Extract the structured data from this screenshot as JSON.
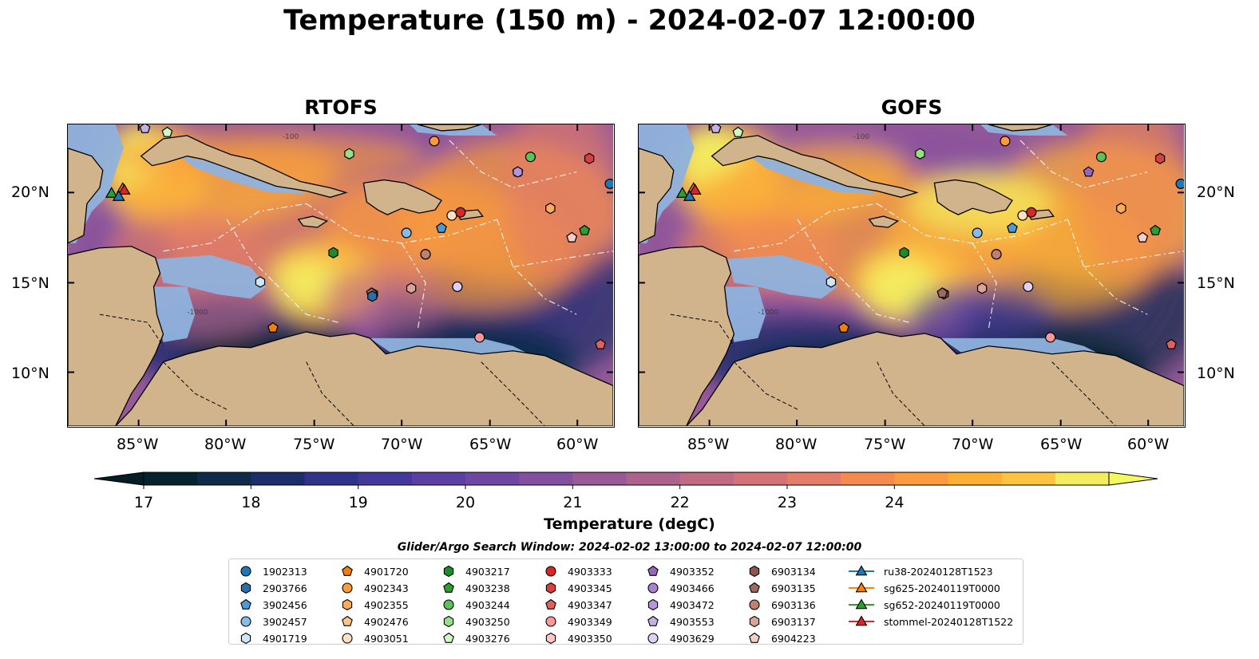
{
  "title": "Temperature (150 m) - 2024-02-07 12:00:00",
  "panels": [
    {
      "title": "RTOFS"
    },
    {
      "title": "GOFS"
    }
  ],
  "axes": {
    "lon_ticks": [
      "85°W",
      "80°W",
      "75°W",
      "70°W",
      "65°W",
      "60°W"
    ],
    "lat_ticks": [
      "20°N",
      "15°N",
      "10°N"
    ]
  },
  "contour_labels": [
    "-100",
    "-1000"
  ],
  "colorbar": {
    "label": "Temperature (degC)",
    "ticks": [
      "17",
      "18",
      "19",
      "20",
      "21",
      "22",
      "23",
      "24"
    ],
    "colors": [
      "#04232f",
      "#0d2a4a",
      "#1b2e6a",
      "#2f3289",
      "#45389b",
      "#5b3fa3",
      "#6f47a3",
      "#83509f",
      "#985a97",
      "#ab628d",
      "#be6b83",
      "#d27378",
      "#e37c68",
      "#f28a52",
      "#f99b3e",
      "#fcae35",
      "#fdc341",
      "#f3ec61"
    ],
    "under_color": "#041d26",
    "over_color": "#f5f85f"
  },
  "search_window": "Glider/Argo Search Window: 2024-02-02 13:00:00 to 2024-02-07 12:00:00",
  "legend": [
    [
      "1902313",
      "2903766",
      "3902456",
      "3902457",
      "4901719"
    ],
    [
      "4901720",
      "4902343",
      "4902355",
      "4902476",
      "4903051"
    ],
    [
      "4903217",
      "4903238",
      "4903244",
      "4903250",
      "4903276"
    ],
    [
      "4903333",
      "4903345",
      "4903347",
      "4903349",
      "4903350"
    ],
    [
      "4903352",
      "4903466",
      "4903472",
      "4903553",
      "4903629"
    ],
    [
      "6903134",
      "6903135",
      "6903136",
      "6903137",
      "6904223"
    ],
    [
      "ru38-20240128T1523",
      "sg625-20240119T0000",
      "sg652-20240119T0000",
      "stommel-20240128T1522"
    ]
  ],
  "legend_markers": [
    [
      [
        "circle",
        "#1f77b4"
      ],
      [
        "hexagon",
        "#2a6fa8"
      ],
      [
        "pentagon",
        "#4d9ad4"
      ],
      [
        "circle",
        "#86bde8"
      ],
      [
        "hexagon",
        "#cfe6f7"
      ]
    ],
    [
      [
        "pentagon",
        "#f07f10"
      ],
      [
        "circle",
        "#ff9a3c"
      ],
      [
        "hexagon",
        "#ffab5e"
      ],
      [
        "pentagon",
        "#ffc48a"
      ],
      [
        "circle",
        "#ffe0c2"
      ]
    ],
    [
      [
        "hexagon",
        "#1f8c2c"
      ],
      [
        "pentagon",
        "#2ca02c"
      ],
      [
        "circle",
        "#5cc25c"
      ],
      [
        "hexagon",
        "#98df8a"
      ],
      [
        "pentagon",
        "#cff7c4"
      ]
    ],
    [
      [
        "circle",
        "#d62728"
      ],
      [
        "hexagon",
        "#d8403f"
      ],
      [
        "pentagon",
        "#e0605f"
      ],
      [
        "circle",
        "#ff9896"
      ],
      [
        "hexagon",
        "#ffc7c6"
      ]
    ],
    [
      [
        "pentagon",
        "#9467bd"
      ],
      [
        "circle",
        "#a983d0"
      ],
      [
        "hexagon",
        "#b596dc"
      ],
      [
        "pentagon",
        "#c5b0e3"
      ],
      [
        "circle",
        "#e0d0f5"
      ]
    ],
    [
      [
        "hexagon",
        "#8c564b"
      ],
      [
        "pentagon",
        "#a0695d"
      ],
      [
        "circle",
        "#c08070"
      ],
      [
        "hexagon",
        "#d9a398"
      ],
      [
        "pentagon",
        "#f5cfc5"
      ]
    ],
    [
      [
        "triangle",
        "#1f77b4"
      ],
      [
        "triangle",
        "#ff7f0e"
      ],
      [
        "triangle",
        "#2ca02c"
      ],
      [
        "triangle",
        "#d62728"
      ]
    ]
  ]
}
